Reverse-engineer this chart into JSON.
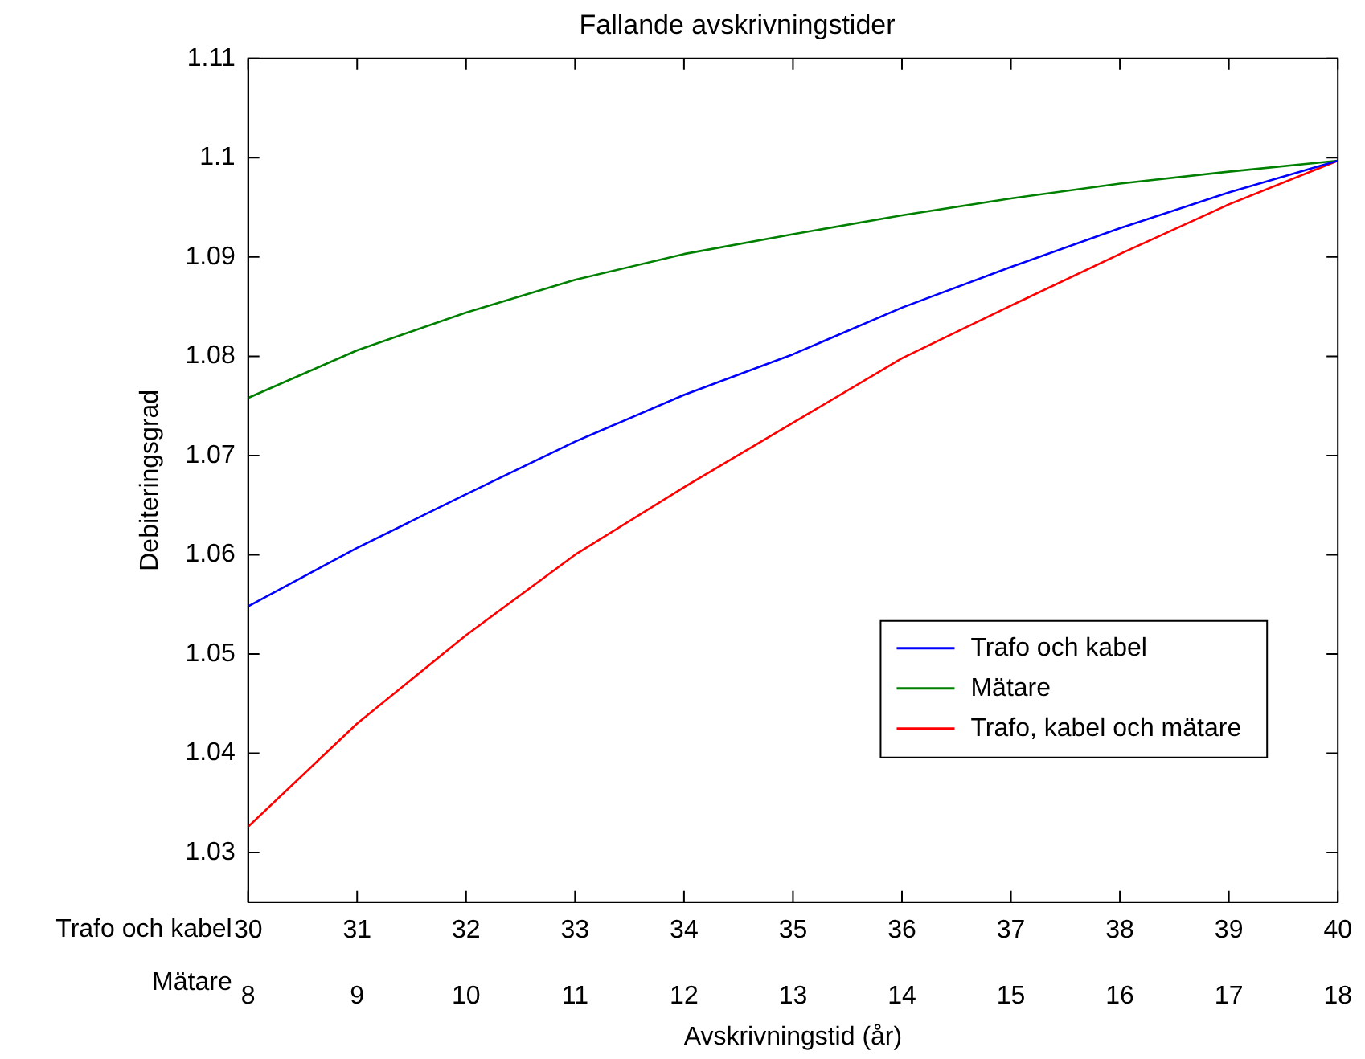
{
  "chart_data": {
    "type": "line",
    "title": "Fallande avskrivningstider",
    "xlabel": "Avskrivningstid (år)",
    "ylabel": "Debiteringsgrad",
    "x": [
      30,
      31,
      32,
      33,
      34,
      35,
      36,
      37,
      38,
      39,
      40
    ],
    "xlim": [
      30,
      40
    ],
    "xticks": [
      30,
      31,
      32,
      33,
      34,
      35,
      36,
      37,
      38,
      39,
      40
    ],
    "x2lim": [
      8,
      18
    ],
    "x2ticks": [
      8,
      9,
      10,
      11,
      12,
      13,
      14,
      15,
      16,
      17,
      18
    ],
    "ylim": [
      1.025,
      1.11
    ],
    "yticks": [
      1.03,
      1.04,
      1.05,
      1.06,
      1.07,
      1.08,
      1.09,
      1.1,
      1.11
    ],
    "annotations": [
      "Trafo och kabel",
      "Mätare"
    ],
    "legend": "bottom right",
    "grid": false,
    "marker": "none",
    "line_style": "solid",
    "series": [
      {
        "name": "Trafo och kabel",
        "color": "#0000ff",
        "values": [
          1.0548,
          1.0607,
          1.0661,
          1.0714,
          1.0761,
          1.0802,
          1.0849,
          1.089,
          1.0929,
          1.0965,
          1.0997
        ]
      },
      {
        "name": "Mätare",
        "color": "#008000",
        "values": [
          1.0758,
          1.0806,
          1.0844,
          1.0877,
          1.0903,
          1.0923,
          1.0942,
          1.0959,
          1.0974,
          1.0986,
          1.0997
        ]
      },
      {
        "name": "Trafo, kabel och mätare",
        "color": "#ff0000",
        "values": [
          1.0326,
          1.043,
          1.0519,
          1.06,
          1.0668,
          1.0733,
          1.0798,
          1.0851,
          1.0903,
          1.0953,
          1.0997
        ]
      }
    ]
  }
}
